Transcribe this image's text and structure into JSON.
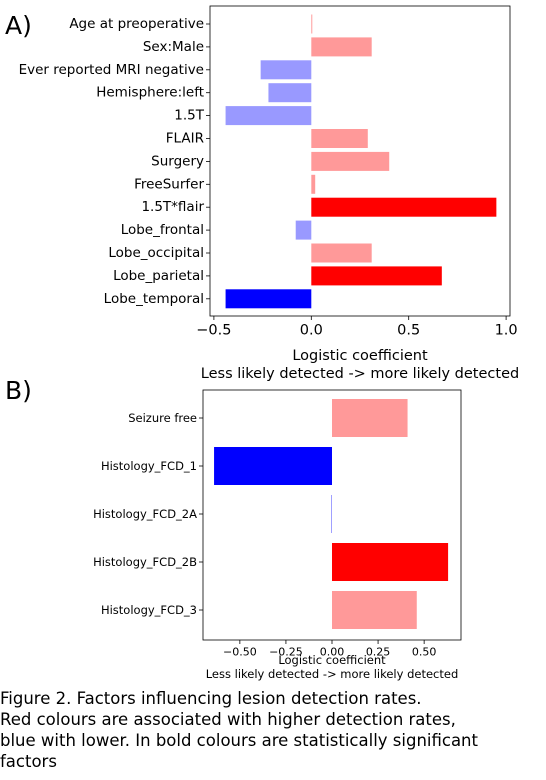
{
  "panels": [
    {
      "letter": "A)",
      "xlabel": "Logistic coefficient",
      "xsublabel": "Less likely detected -> more likely detected",
      "xticks": [
        -0.5,
        0.0,
        0.5,
        1.0
      ],
      "xtick_labels": [
        "−0.5",
        "0.0",
        "0.5",
        "1.0"
      ]
    },
    {
      "letter": "B)",
      "xlabel": "Logistic coefficient",
      "xsublabel": "Less likely detected -> more likely detected",
      "xticks": [
        -0.5,
        -0.25,
        0.0,
        0.25,
        0.5
      ],
      "xtick_labels": [
        "−0.50",
        "−0.25",
        "0.00",
        "0.25",
        "0.50"
      ]
    }
  ],
  "chart_data": [
    {
      "type": "bar",
      "orientation": "horizontal",
      "categories": [
        "Age at preoperative",
        "Sex:Male",
        "Ever reported MRI negative",
        "Hemisphere:left",
        "1.5T",
        "FLAIR",
        "Surgery",
        "FreeSurfer",
        "1.5T*flair",
        "Lobe_frontal",
        "Lobe_occipital",
        "Lobe_parietal",
        "Lobe_temporal"
      ],
      "values": [
        0.005,
        0.31,
        -0.26,
        -0.22,
        -0.44,
        0.29,
        0.4,
        0.02,
        0.95,
        -0.08,
        0.31,
        0.67,
        -0.44
      ],
      "colors": [
        "#ff9999",
        "#ff9999",
        "#9999ff",
        "#9999ff",
        "#9999ff",
        "#ff9999",
        "#ff9999",
        "#ff9999",
        "#ff0000",
        "#9999ff",
        "#ff9999",
        "#ff0000",
        "#0000ff"
      ],
      "xlim": [
        -0.52,
        1.02
      ],
      "xlabel": "Logistic coefficient",
      "grid": false
    },
    {
      "type": "bar",
      "orientation": "horizontal",
      "categories": [
        "Seizure free",
        "Histology_FCD_1",
        "Histology_FCD_2A",
        "Histology_FCD_2B",
        "Histology_FCD_3"
      ],
      "values": [
        0.41,
        -0.64,
        -0.005,
        0.63,
        0.46
      ],
      "colors": [
        "#ff9999",
        "#0000ff",
        "#9999ff",
        "#ff0000",
        "#ff9999"
      ],
      "xlim": [
        -0.7,
        0.7
      ],
      "xlabel": "Logistic coefficient",
      "grid": false
    }
  ],
  "caption": {
    "lines": [
      "Figure 2. Factors influencing lesion detection rates.",
      "Red colours are associated with higher detection rates,",
      "blue with lower. In bold colours are statistically significant",
      "factors"
    ]
  }
}
